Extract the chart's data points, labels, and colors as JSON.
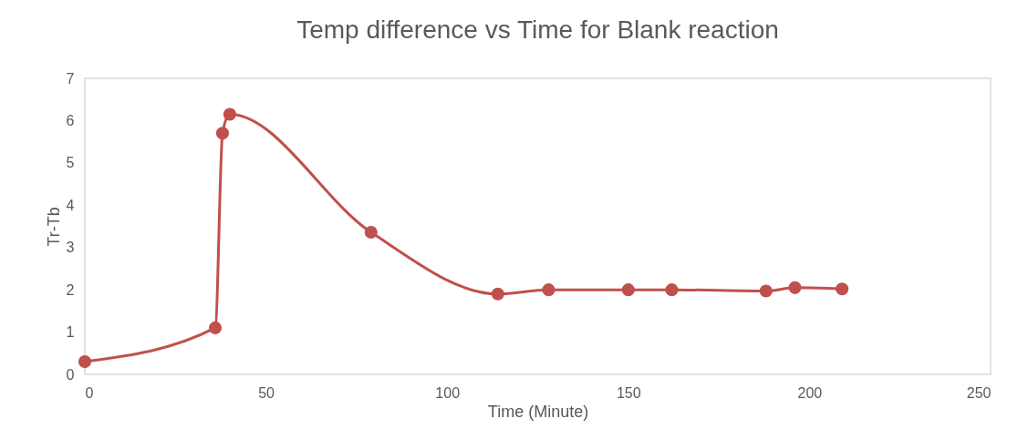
{
  "chart_data": {
    "type": "line",
    "title": "Temp difference vs Time for Blank reaction",
    "xlabel": "Time (Minute)",
    "ylabel": "Tr-Tb",
    "x": [
      0,
      36,
      38,
      40,
      79,
      114,
      128,
      150,
      162,
      188,
      196,
      209
    ],
    "series": [
      {
        "color": "#c0504d",
        "values": [
          0.3,
          1.1,
          5.7,
          6.15,
          3.36,
          1.9,
          2.0,
          2.0,
          2.0,
          1.97,
          2.05,
          2.02
        ]
      }
    ],
    "xlim": [
      0,
      250
    ],
    "xticks": [
      0,
      50,
      100,
      150,
      200,
      250
    ],
    "ylim": [
      0,
      7
    ],
    "yticks": [
      0,
      1,
      2,
      3,
      4,
      5,
      6,
      7
    ],
    "grid": false,
    "marker": "circle",
    "line_style": "solid"
  }
}
